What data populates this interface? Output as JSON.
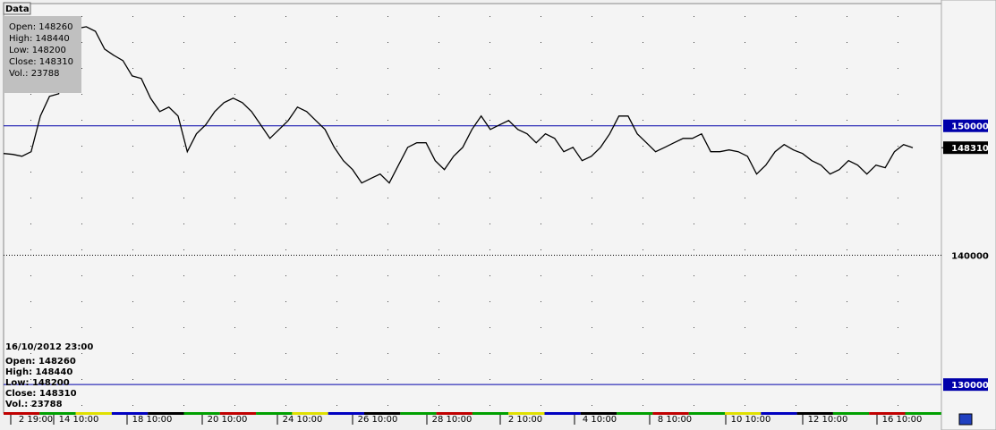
{
  "chart_data": {
    "type": "line",
    "color": "#000000",
    "values": [
      147860,
      147790,
      147650,
      148000,
      150760,
      152280,
      152480,
      157800,
      157520,
      157660,
      157310,
      155930,
      155450,
      155040,
      153860,
      153660,
      152140,
      151100,
      151450,
      150760,
      148000,
      149380,
      150070,
      151100,
      151790,
      152140,
      151790,
      151100,
      150070,
      149030,
      149720,
      150410,
      151450,
      151100,
      150410,
      149720,
      148340,
      147310,
      146620,
      145580,
      145930,
      146270,
      145580,
      146960,
      148340,
      148690,
      148690,
      147310,
      146620,
      147650,
      148340,
      149720,
      150760,
      149720,
      150070,
      150410,
      149720,
      149380,
      148690,
      149380,
      149030,
      148000,
      148340,
      147310,
      147650,
      148340,
      149380,
      150760,
      150760,
      149380,
      148690,
      148000,
      148340,
      148690,
      149030,
      149030,
      149380,
      148000,
      148000,
      148140,
      148000,
      147650,
      146270,
      146960,
      148000,
      148550,
      148140,
      147860,
      147310,
      146960,
      146270,
      146620,
      147310,
      146960,
      146270,
      146960,
      146760,
      148000,
      148550,
      148310
    ],
    "ylim": [
      127800,
      159450
    ],
    "yticks": [
      130000,
      140000,
      150000
    ],
    "hlines": [
      150000,
      130000
    ],
    "hline_color": "#0000aa",
    "last_price": 148310,
    "x_labels": [
      "2 19:00",
      "14 10:00",
      "18 10:00",
      "20 10:00",
      "24 10:00",
      "26 10:00",
      "28 10:00",
      "2 10:00",
      "4 10:00",
      "8 10:00",
      "10 10:00",
      "12 10:00",
      "16 10:00"
    ]
  },
  "tooltip": {
    "tab": "Data",
    "lines": [
      "Open: 148260",
      "High: 148440",
      "Low: 148200",
      "Close: 148310",
      "Vol.: 23788"
    ]
  },
  "status": {
    "date": "16/10/2012 23:00",
    "lines": [
      "Open: 148260",
      "High: 148440",
      "Low: 148200",
      "Close: 148310",
      "Vol.: 23788"
    ]
  }
}
